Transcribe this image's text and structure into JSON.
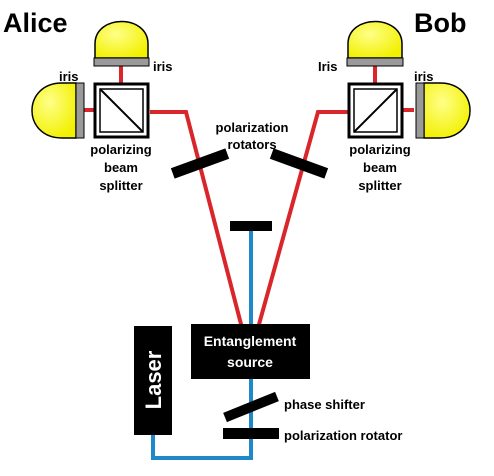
{
  "names": {
    "alice": "Alice",
    "bob": "Bob"
  },
  "labels": {
    "iris": "iris",
    "iris_bob_top": "Iris",
    "polarization_rotators": [
      "polarization",
      "rotators"
    ],
    "polarizing_beam_splitter": [
      "polarizing",
      "beam",
      "splitter"
    ],
    "entanglement_source": [
      "Entanglement",
      "source"
    ],
    "laser": "Laser",
    "phase_shifter": "phase shifter",
    "polarization_rotator": "polarization rotator"
  },
  "colors": {
    "beam_red": "#d9262b",
    "beam_blue": "#1e88c8",
    "detector_yellow": "#ffff33",
    "iris_gray": "#9a9a9a",
    "component_black": "#000000"
  }
}
